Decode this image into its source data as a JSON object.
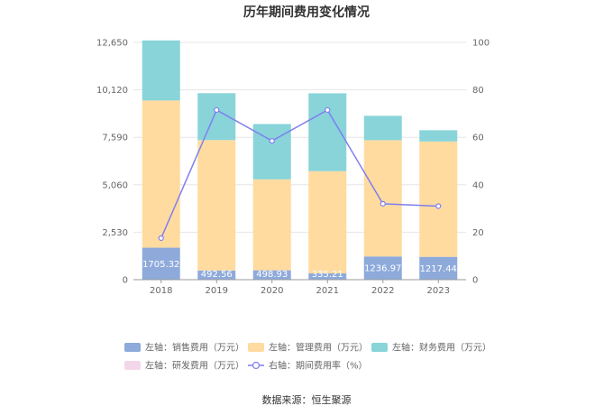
{
  "chart_data": {
    "type": "bar",
    "title": "历年期间费用变化情况",
    "categories": [
      "2018",
      "2019",
      "2020",
      "2021",
      "2022",
      "2023"
    ],
    "series": [
      {
        "name": "左轴：销售费用（万元）",
        "axis": "left",
        "color": "#8eaadb",
        "values": [
          1705.32,
          492.56,
          498.93,
          335.21,
          1236.97,
          1217.44
        ]
      },
      {
        "name": "左轴：管理费用（万元）",
        "axis": "left",
        "color": "#ffdba0",
        "values": [
          7850,
          6950,
          4850,
          5450,
          6200,
          6150
        ]
      },
      {
        "name": "左轴：财务费用（万元）",
        "axis": "left",
        "color": "#88d4d9",
        "values": [
          3200,
          2500,
          2950,
          4150,
          1300,
          600
        ]
      },
      {
        "name": "左轴：研发费用（万元）",
        "axis": "left",
        "color": "#f2d7ea",
        "values": [
          0,
          0,
          0,
          0,
          0,
          0
        ]
      },
      {
        "name": "右轴：期间费用率（%）",
        "axis": "right",
        "type": "line",
        "color": "#7f7ff0",
        "values": [
          17.5,
          71.5,
          58.5,
          71.5,
          32,
          31
        ]
      }
    ],
    "bar_labels": [
      "1705.32",
      "492.56",
      "498.93",
      "335.21",
      "1236.97",
      "1217.44"
    ],
    "left_ticks": [
      "0",
      "2,530",
      "5,060",
      "7,590",
      "10,120",
      "12,650"
    ],
    "right_ticks": [
      "0",
      "20",
      "40",
      "60",
      "80",
      "100"
    ],
    "ylim_left": [
      0,
      12650
    ],
    "ylim_right": [
      0,
      100
    ],
    "grid": true,
    "legend_position": "bottom"
  },
  "source": "数据来源：恒生聚源"
}
